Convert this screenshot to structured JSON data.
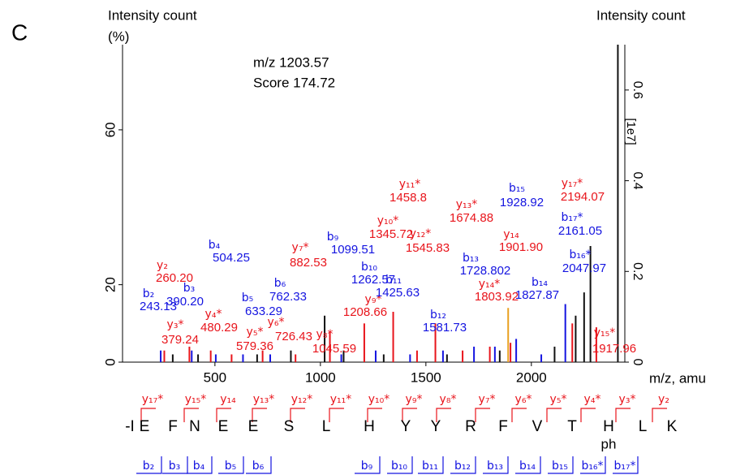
{
  "chart_data": {
    "type": "spectrum",
    "panel_label": "C",
    "y_label_line1": "Intensity count",
    "y_label_line2": "(%)",
    "y2_label": "Intensity count",
    "y2_unit": "[1e7]",
    "x_label": "m/z, amu",
    "precursor": "m/z  1203.57",
    "score": "Score  174.72",
    "xlim": [
      62,
      2443
    ],
    "xticks": [
      500,
      1000,
      1500,
      2000
    ],
    "ylim": [
      0,
      82
    ],
    "yticks": [
      0,
      20,
      60
    ],
    "y2lim": [
      0,
      0.7
    ],
    "y2ticks": [
      0,
      0.2,
      0.4,
      0.6
    ],
    "series": [
      {
        "color": "#e8141b",
        "x": [
          260,
          379,
          480,
          579,
          726,
          882,
          1045,
          1208,
          1345,
          1458,
          1545,
          1674,
          1803,
          1901,
          2194,
          2308
        ],
        "values": [
          3,
          4,
          3,
          2,
          3,
          2,
          8,
          10,
          13,
          3,
          10,
          3,
          4,
          5,
          10,
          9
        ]
      },
      {
        "color": "#1414e0",
        "x": [
          243,
          390,
          504,
          633,
          762,
          1099,
          1262,
          1425,
          1581,
          1728,
          1827,
          1928,
          2047,
          2161
        ],
        "values": [
          3,
          3,
          2,
          2,
          2,
          2,
          3,
          2,
          3,
          4,
          4,
          6,
          2,
          15
        ]
      },
      {
        "color": "#111111",
        "x": [
          300,
          420,
          700,
          860,
          1020,
          1110,
          1300,
          1600,
          1850,
          2110,
          2210,
          2250,
          2280,
          2410
        ],
        "values": [
          2,
          2,
          2,
          3,
          12,
          3,
          2,
          2,
          3,
          4,
          12,
          18,
          30,
          82
        ]
      },
      {
        "color": "#e8a020",
        "x": [
          1890
        ],
        "values": [
          14
        ]
      }
    ],
    "annotations": [
      {
        "ion": "y₂",
        "mz": "260.20",
        "color": "#e8141b"
      },
      {
        "ion": "b₂",
        "mz": "243.13",
        "color": "#1414e0"
      },
      {
        "ion": "b₃",
        "mz": "390.20",
        "color": "#1414e0"
      },
      {
        "ion": "b₄",
        "mz": "504.25",
        "color": "#1414e0"
      },
      {
        "ion": "y₄*",
        "mz": "480.29",
        "color": "#e8141b"
      },
      {
        "ion": "y₃*",
        "mz": "379.24",
        "color": "#e8141b"
      },
      {
        "ion": "b₅",
        "mz": "633.29",
        "color": "#1414e0"
      },
      {
        "ion": "b₆",
        "mz": "762.33",
        "color": "#1414e0"
      },
      {
        "ion": "y₅*",
        "mz": "579.36",
        "color": "#e8141b"
      },
      {
        "ion": "y₆*",
        "mz": "726.43",
        "color": "#e8141b"
      },
      {
        "ion": "y₇*",
        "mz": "882.53",
        "color": "#e8141b"
      },
      {
        "ion": "b₉",
        "mz": "1099.51",
        "color": "#1414e0"
      },
      {
        "ion": "y₈*",
        "mz": "1045.59",
        "color": "#e8141b"
      },
      {
        "ion": "b₁₀",
        "mz": "1262.57",
        "color": "#1414e0"
      },
      {
        "ion": "y₉*",
        "mz": "1208.66",
        "color": "#e8141b"
      },
      {
        "ion": "y₁₀*",
        "mz": "1345.72",
        "color": "#e8141b"
      },
      {
        "ion": "y₁₁*",
        "mz": "1458.8",
        "color": "#e8141b"
      },
      {
        "ion": "b₁₁",
        "mz": "1425.63",
        "color": "#1414e0"
      },
      {
        "ion": "y₁₂*",
        "mz": "1545.83",
        "color": "#e8141b"
      },
      {
        "ion": "b₁₂",
        "mz": "1581.73",
        "color": "#1414e0"
      },
      {
        "ion": "y₁₃*",
        "mz": "1674.88",
        "color": "#e8141b"
      },
      {
        "ion": "b₁₃",
        "mz": "1728.802",
        "color": "#1414e0"
      },
      {
        "ion": "b₁₅",
        "mz": "1928.92",
        "color": "#1414e0"
      },
      {
        "ion": "y₁₄",
        "mz": "1901.90",
        "color": "#e8141b"
      },
      {
        "ion": "b₁₇*",
        "mz": "2161.05",
        "color": "#1414e0"
      },
      {
        "ion": "y₁₇*",
        "mz": "2194.07",
        "color": "#e8141b"
      },
      {
        "ion": "b₁₄",
        "mz": "1827.87",
        "color": "#1414e0"
      },
      {
        "ion": "y₁₄*",
        "mz": "1803.92",
        "color": "#e8141b"
      },
      {
        "ion": "b₁₆*",
        "mz": "2047.97",
        "color": "#1414e0"
      },
      {
        "ion": "y₁₅*",
        "mz": "1917.96",
        "color": "#e8141b"
      }
    ]
  },
  "sequence": {
    "y_ions": [
      "y₁₇*",
      "y₁₅*",
      "y₁₄",
      "y₁₃*",
      "y₁₂*",
      "y₁₁*",
      "y₁₀*",
      "y₉*",
      "y₈*",
      "y₇*",
      "y₆*",
      "y₅*",
      "y₄*",
      "y₃*",
      "y₂"
    ],
    "residues": [
      "-I",
      "E",
      "F",
      "N",
      "E",
      "E",
      "S",
      "L",
      "H",
      "Y",
      "Y",
      "R",
      "F",
      "V",
      "T",
      "H",
      "L",
      "K"
    ],
    "modification": "ph",
    "b_ions": [
      "b₂",
      "b₃",
      "b₄",
      "b₅",
      "b₆",
      "b₉",
      "b₁₀",
      "b₁₁",
      "b₁₂",
      "b₁₃",
      "b₁₄",
      "b₁₅",
      "b₁₆*",
      "b₁₇*"
    ]
  }
}
